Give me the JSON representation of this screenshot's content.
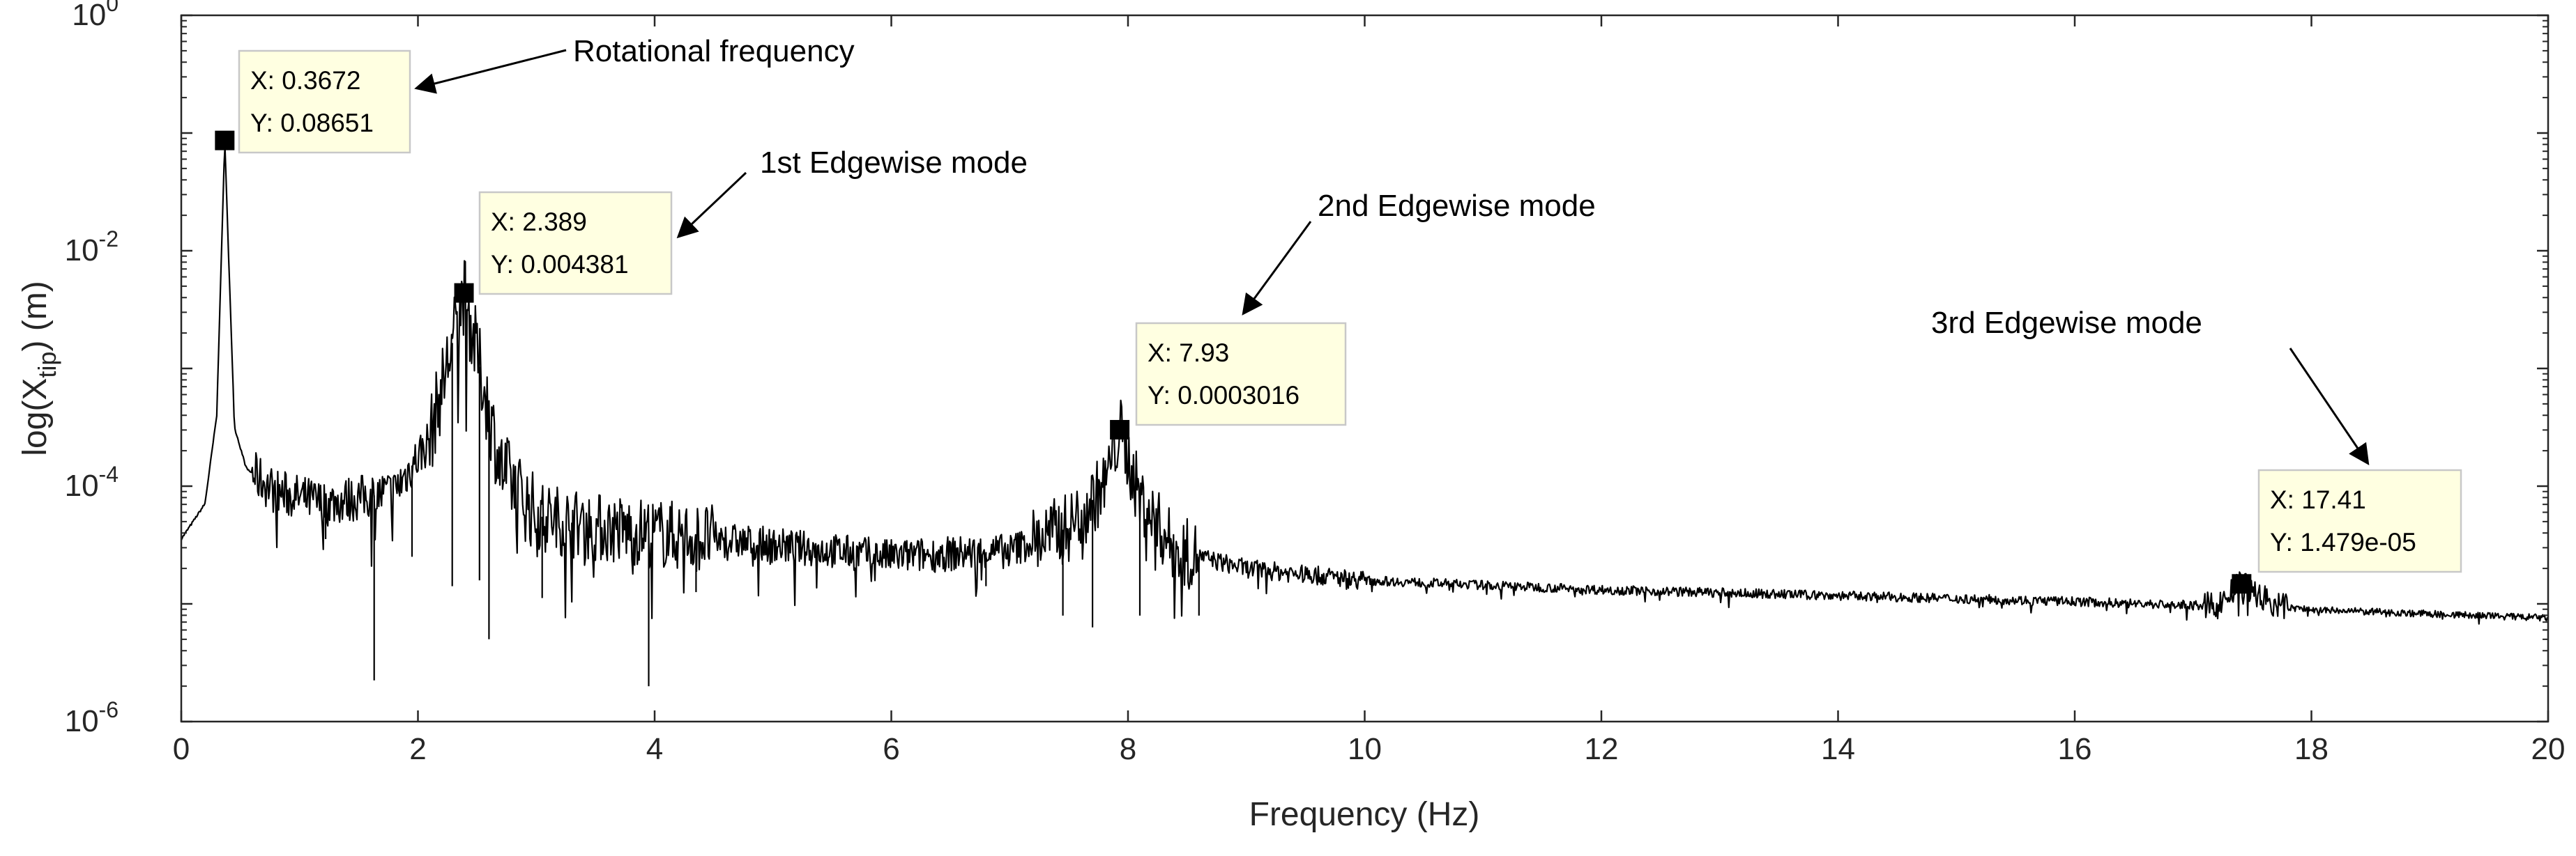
{
  "chart_data": {
    "type": "line",
    "title": "",
    "xlabel": "Frequency (Hz)",
    "ylabel": {
      "prefix": "log(X",
      "subscript": "tip",
      "suffix": ") (m)"
    },
    "xlim": [
      0,
      20
    ],
    "ylim_log10": [
      -6,
      0
    ],
    "x_ticks": [
      {
        "value": 0,
        "label": "0"
      },
      {
        "value": 2,
        "label": "2"
      },
      {
        "value": 4,
        "label": "4"
      },
      {
        "value": 6,
        "label": "6"
      },
      {
        "value": 8,
        "label": "8"
      },
      {
        "value": 10,
        "label": "10"
      },
      {
        "value": 12,
        "label": "12"
      },
      {
        "value": 14,
        "label": "14"
      },
      {
        "value": 16,
        "label": "16"
      },
      {
        "value": 18,
        "label": "18"
      },
      {
        "value": 20,
        "label": "20"
      }
    ],
    "y_ticks": [
      {
        "exp": 0,
        "base": "10",
        "sup": "0"
      },
      {
        "exp": -2,
        "base": "10",
        "sup": "-2"
      },
      {
        "exp": -4,
        "base": "10",
        "sup": "-4"
      },
      {
        "exp": -6,
        "base": "10",
        "sup": "-6"
      }
    ],
    "baseline_shape": [
      [
        0,
        -4.45
      ],
      [
        0.2,
        -4.15
      ],
      [
        0.3,
        -3.4
      ],
      [
        0.3672,
        -1.063
      ],
      [
        0.45,
        -3.5
      ],
      [
        0.55,
        -3.85
      ],
      [
        0.8,
        -4.05
      ],
      [
        1.2,
        -4.15
      ],
      [
        1.5,
        -4.1
      ],
      [
        1.8,
        -4.05
      ],
      [
        2.1,
        -3.6
      ],
      [
        2.389,
        -2.358
      ],
      [
        2.7,
        -3.85
      ],
      [
        3.0,
        -4.25
      ],
      [
        3.5,
        -4.35
      ],
      [
        4.0,
        -4.4
      ],
      [
        4.5,
        -4.45
      ],
      [
        5.0,
        -4.5
      ],
      [
        6.0,
        -4.6
      ],
      [
        7.0,
        -4.55
      ],
      [
        7.5,
        -4.35
      ],
      [
        7.8,
        -4.0
      ],
      [
        7.93,
        -3.52
      ],
      [
        8.1,
        -4.1
      ],
      [
        8.4,
        -4.55
      ],
      [
        9.0,
        -4.7
      ],
      [
        10.0,
        -4.8
      ],
      [
        12.0,
        -4.88
      ],
      [
        14.0,
        -4.93
      ],
      [
        16.0,
        -4.98
      ],
      [
        17.2,
        -5.02
      ],
      [
        17.41,
        -4.83
      ],
      [
        17.7,
        -5.02
      ],
      [
        18.0,
        -5.05
      ],
      [
        20.0,
        -5.12
      ]
    ],
    "noise_bands": [
      {
        "from": 0.6,
        "to": 2.1,
        "amplitude": 0.2
      },
      {
        "from": 2.1,
        "to": 3.0,
        "amplitude": 0.35
      },
      {
        "from": 3.0,
        "to": 4.5,
        "amplitude": 0.3
      },
      {
        "from": 4.5,
        "to": 7.2,
        "amplitude": 0.15
      },
      {
        "from": 7.2,
        "to": 8.6,
        "amplitude": 0.3
      },
      {
        "from": 8.6,
        "to": 10.0,
        "amplitude": 0.08
      },
      {
        "from": 10.0,
        "to": 17.1,
        "amplitude": 0.04
      },
      {
        "from": 17.1,
        "to": 17.8,
        "amplitude": 0.12
      },
      {
        "from": 17.8,
        "to": 20.0,
        "amplitude": 0.03
      }
    ],
    "spikes_log10": [
      [
        1.63,
        -5.65
      ],
      [
        2.29,
        -4.85
      ],
      [
        2.6,
        -5.3
      ],
      [
        2.52,
        -4.8
      ],
      [
        3.05,
        -4.95
      ],
      [
        3.3,
        -4.7
      ],
      [
        3.95,
        -5.7
      ],
      [
        4.35,
        -4.9
      ],
      [
        1.95,
        -4.6
      ],
      [
        1.22,
        -4.45
      ],
      [
        7.45,
        -5.1
      ],
      [
        7.7,
        -5.2
      ],
      [
        8.1,
        -5.1
      ],
      [
        8.6,
        -5.1
      ],
      [
        6.8,
        -4.85
      ]
    ],
    "markers": [
      {
        "x": 0.3672,
        "y": 0.08651,
        "x_text": "X: 0.3672",
        "y_text": "Y: 0.08651"
      },
      {
        "x": 2.389,
        "y": 0.004381,
        "x_text": "X: 2.389",
        "y_text": "Y: 0.004381"
      },
      {
        "x": 7.93,
        "y": 0.0003016,
        "x_text": "X: 7.93",
        "y_text": "Y: 0.0003016"
      },
      {
        "x": 17.41,
        "y": 1.479e-05,
        "x_text": "X: 17.41",
        "y_text": "Y: 1.479e-05"
      }
    ],
    "annotations": [
      {
        "text": "Rotational frequency",
        "target_marker": 0
      },
      {
        "text": "1st Edgewise mode",
        "target_marker": 1
      },
      {
        "text": "2nd Edgewise mode",
        "target_marker": 2
      },
      {
        "text": "3rd Edgewise mode",
        "target_marker": 3
      }
    ]
  }
}
